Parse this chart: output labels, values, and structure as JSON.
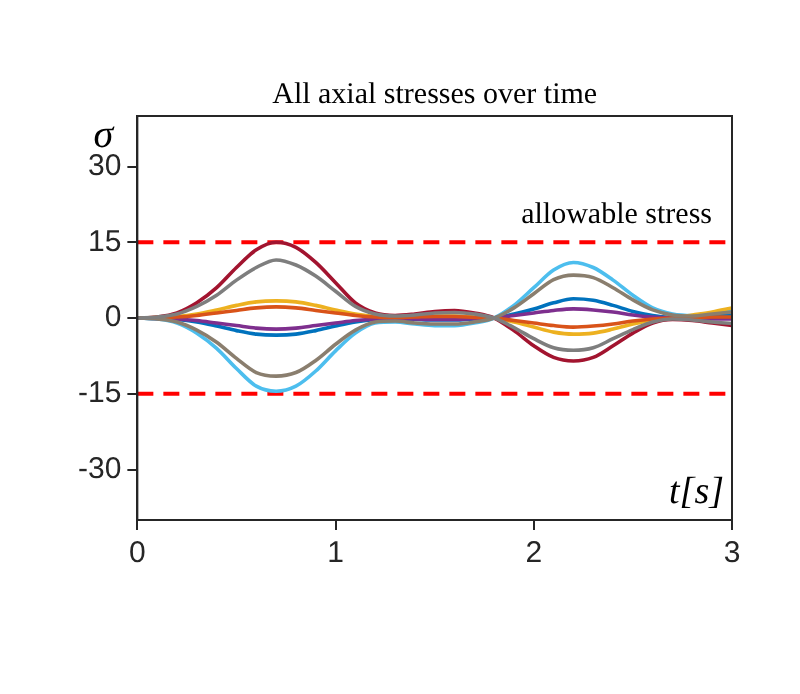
{
  "chart_data": {
    "type": "line",
    "title": "All axial stresses over time",
    "xlabel": "t[s]",
    "ylabel": "σ",
    "x": [
      0,
      0.1,
      0.2,
      0.3,
      0.4,
      0.5,
      0.6,
      0.7,
      0.8,
      0.9,
      1.0,
      1.1,
      1.2,
      1.3,
      1.4,
      1.5,
      1.6,
      1.7,
      1.8,
      1.9,
      2.0,
      2.1,
      2.2,
      2.3,
      2.4,
      2.5,
      2.6,
      2.7,
      2.8,
      2.9,
      3.0
    ],
    "series": [
      {
        "color": "#7e7e7e",
        "values": [
          0,
          0.2,
          0.8,
          2.3,
          4.5,
          7.5,
          10,
          11.5,
          10.5,
          8.3,
          5.3,
          2.3,
          0.8,
          0.4,
          0.6,
          1,
          1.1,
          0.8,
          0,
          -1.9,
          -4.1,
          -5.9,
          -6.4,
          -5.9,
          -4.1,
          -2.3,
          -0.8,
          -0.2,
          -0.4,
          -0.8,
          -1.1
        ]
      },
      {
        "color": "#8a7e6e",
        "values": [
          0,
          -0.2,
          -0.8,
          -2.4,
          -4.8,
          -8,
          -10.8,
          -11.5,
          -10.8,
          -8.4,
          -5.2,
          -2.4,
          -0.8,
          -0.6,
          -1,
          -1.2,
          -1.2,
          -0.8,
          0,
          2,
          4.8,
          7.6,
          8.5,
          8,
          6,
          3.6,
          1.6,
          0.6,
          0.4,
          0.8,
          1.2
        ]
      },
      {
        "color": "#d95319",
        "values": [
          0,
          0.1,
          0.2,
          0.5,
          1,
          1.5,
          2,
          2.2,
          2,
          1.5,
          1,
          0.5,
          0.2,
          0.1,
          0.2,
          0.3,
          0.3,
          0.1,
          0,
          -0.5,
          -1,
          -1.5,
          -1.8,
          -1.6,
          -1.2,
          -0.6,
          -0.2,
          0,
          0.1,
          0.2,
          0.2
        ]
      },
      {
        "color": "#7e2f8e",
        "values": [
          0,
          -0.1,
          -0.2,
          -0.5,
          -1,
          -1.5,
          -2,
          -2.2,
          -2,
          -1.5,
          -1,
          -0.5,
          -0.2,
          -0.1,
          -0.2,
          -0.3,
          -0.3,
          -0.1,
          0,
          0.5,
          1,
          1.5,
          1.8,
          1.6,
          1.2,
          0.6,
          0.2,
          0,
          -0.1,
          -0.2,
          -0.2
        ]
      },
      {
        "color": "#edb120",
        "values": [
          0,
          0.1,
          0.3,
          0.8,
          1.6,
          2.5,
          3.2,
          3.4,
          3.2,
          2.5,
          1.6,
          0.8,
          0.3,
          0.2,
          0.3,
          0.4,
          0.4,
          0.2,
          0,
          -0.8,
          -1.8,
          -2.8,
          -3.2,
          -3,
          -2.2,
          -1.2,
          -0.4,
          0,
          0.6,
          1.2,
          2
        ]
      },
      {
        "color": "#0072bd",
        "values": [
          0,
          -0.1,
          -0.3,
          -0.8,
          -1.6,
          -2.5,
          -3.2,
          -3.4,
          -3.2,
          -2.5,
          -1.6,
          -0.8,
          -0.3,
          -0.2,
          -0.3,
          -0.4,
          -0.4,
          -0.2,
          0,
          0.8,
          1.8,
          3,
          3.8,
          3.5,
          2.5,
          1.3,
          0.5,
          0.1,
          0,
          0.3,
          0.6
        ]
      },
      {
        "color": "#4dbeee",
        "values": [
          0,
          -0.2,
          -1,
          -3,
          -6,
          -10,
          -13.5,
          -14.5,
          -13.5,
          -10.5,
          -6.5,
          -3,
          -1,
          -0.8,
          -1.2,
          -1.5,
          -1.5,
          -1,
          0,
          2.5,
          6,
          9.5,
          11,
          10,
          7.5,
          4.5,
          2,
          0.8,
          0.5,
          1,
          1.5
        ]
      },
      {
        "color": "#a2142f",
        "values": [
          0,
          0.2,
          1,
          3,
          6,
          10,
          13.5,
          15,
          14,
          11,
          7,
          3,
          1,
          0.5,
          0.8,
          1.3,
          1.5,
          1,
          0,
          -2.5,
          -5.5,
          -7.8,
          -8.5,
          -7.8,
          -5.5,
          -3,
          -1,
          -0.3,
          -0.5,
          -1,
          -1.5
        ]
      }
    ],
    "xlim": [
      0,
      3
    ],
    "ylim": [
      -40,
      40
    ],
    "xticks": [
      0,
      1,
      2,
      3
    ],
    "yticks": [
      -30,
      -15,
      0,
      15,
      30
    ],
    "ref_lines": [
      {
        "axis": "y",
        "value": 15,
        "label": "allowable stress",
        "color": "#ff0000",
        "line_style": "dashed"
      },
      {
        "axis": "y",
        "value": -15,
        "color": "#ff0000",
        "line_style": "dashed"
      }
    ],
    "grid": false,
    "legend": false,
    "marker": "none",
    "line_style": "solid"
  }
}
